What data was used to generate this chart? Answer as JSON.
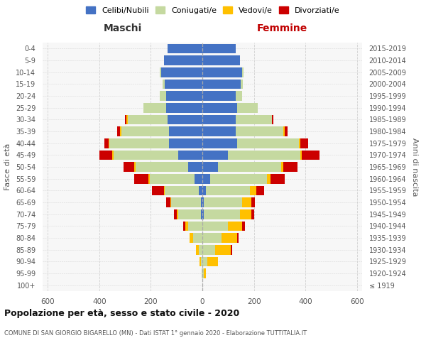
{
  "age_groups": [
    "100+",
    "95-99",
    "90-94",
    "85-89",
    "80-84",
    "75-79",
    "70-74",
    "65-69",
    "60-64",
    "55-59",
    "50-54",
    "45-49",
    "40-44",
    "35-39",
    "30-34",
    "25-29",
    "20-24",
    "15-19",
    "10-14",
    "5-9",
    "0-4"
  ],
  "birth_years": [
    "≤ 1919",
    "1920-1924",
    "1925-1929",
    "1930-1934",
    "1935-1939",
    "1940-1944",
    "1945-1949",
    "1950-1954",
    "1955-1959",
    "1960-1964",
    "1965-1969",
    "1970-1974",
    "1975-1979",
    "1980-1984",
    "1985-1989",
    "1990-1994",
    "1995-1999",
    "2000-2004",
    "2005-2009",
    "2010-2014",
    "2015-2019"
  ],
  "males": {
    "celibi": [
      0,
      0,
      0,
      0,
      0,
      0,
      5,
      5,
      15,
      30,
      55,
      95,
      130,
      130,
      135,
      140,
      140,
      145,
      160,
      150,
      135
    ],
    "coniugati": [
      0,
      2,
      5,
      15,
      35,
      55,
      90,
      115,
      130,
      175,
      205,
      250,
      230,
      185,
      155,
      90,
      25,
      10,
      5,
      0,
      0
    ],
    "vedovi": [
      0,
      0,
      5,
      10,
      15,
      10,
      5,
      5,
      5,
      5,
      5,
      5,
      5,
      5,
      5,
      0,
      0,
      0,
      0,
      0,
      0
    ],
    "divorziati": [
      0,
      0,
      0,
      0,
      0,
      10,
      10,
      15,
      45,
      55,
      40,
      50,
      15,
      10,
      5,
      0,
      0,
      0,
      0,
      0,
      0
    ]
  },
  "females": {
    "nubili": [
      0,
      0,
      0,
      0,
      0,
      0,
      5,
      5,
      15,
      30,
      60,
      100,
      135,
      130,
      130,
      135,
      130,
      150,
      155,
      145,
      130
    ],
    "coniugate": [
      0,
      5,
      20,
      50,
      75,
      100,
      140,
      150,
      170,
      220,
      245,
      280,
      240,
      185,
      140,
      80,
      25,
      8,
      5,
      0,
      0
    ],
    "vedove": [
      0,
      10,
      40,
      60,
      60,
      55,
      45,
      35,
      25,
      15,
      10,
      5,
      5,
      5,
      0,
      0,
      0,
      0,
      0,
      0,
      0
    ],
    "divorziate": [
      0,
      0,
      0,
      5,
      5,
      10,
      10,
      15,
      30,
      55,
      55,
      70,
      30,
      10,
      5,
      0,
      0,
      0,
      0,
      0,
      0
    ]
  },
  "colors": {
    "celibi": "#4472c4",
    "coniugati": "#c5d9a0",
    "vedovi": "#ffc000",
    "divorziati": "#cc0000"
  },
  "title": "Popolazione per età, sesso e stato civile - 2020",
  "subtitle": "COMUNE DI SAN GIORGIO BIGARELLO (MN) - Dati ISTAT 1° gennaio 2020 - Elaborazione TUTTITALIA.IT",
  "ylabel_left": "Fasce di età",
  "ylabel_right": "Anni di nascita",
  "xlabel_left": "Maschi",
  "xlabel_right": "Femmine",
  "xlim": 620,
  "background_color": "#ffffff",
  "plot_bg": "#f7f7f7",
  "grid_color": "#cccccc"
}
